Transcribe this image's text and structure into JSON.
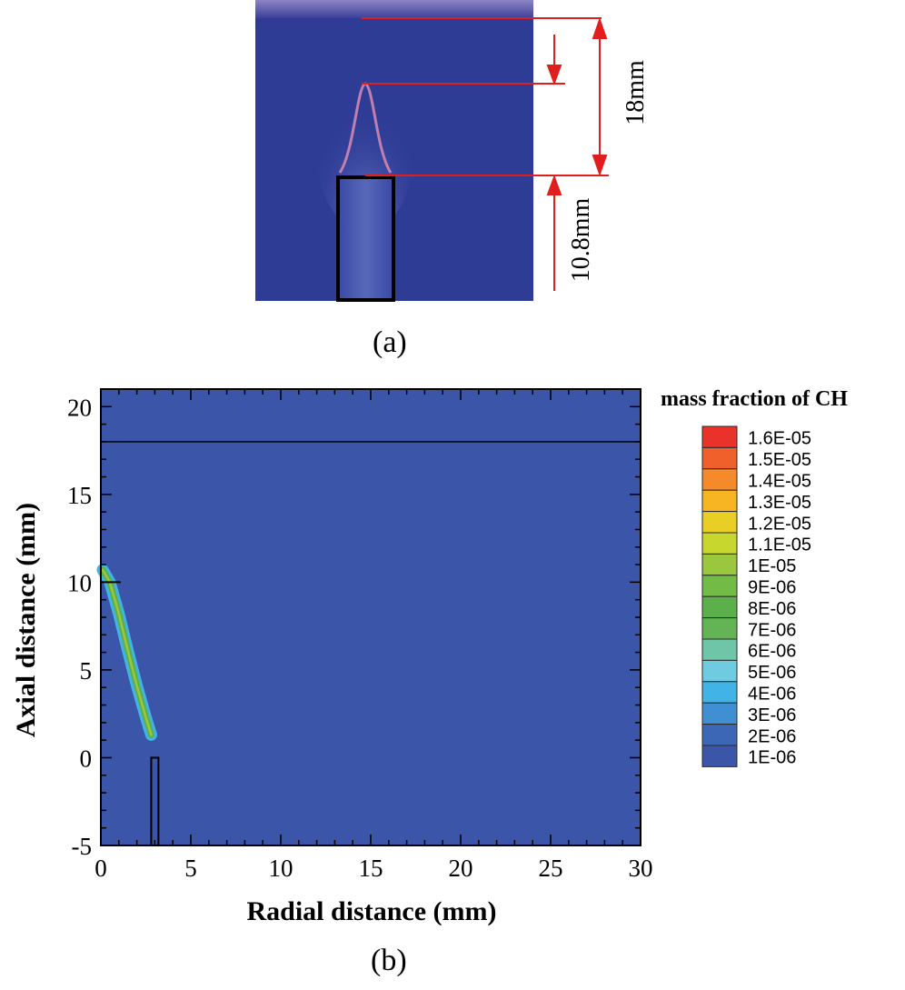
{
  "panel_a": {
    "caption": "(a)",
    "dimension_upper": "18mm",
    "dimension_lower": "10.8mm",
    "flame_color": "#2f3c96"
  },
  "panel_b": {
    "caption": "(b)",
    "background_color": "#3b55a8"
  },
  "chart_data": {
    "type": "contour",
    "title": "mass fraction of CH",
    "xlabel": "Radial distance (mm)",
    "ylabel": "Axial distance (mm)",
    "xlim": [
      0,
      30
    ],
    "ylim": [
      -5,
      21
    ],
    "xticks": [
      "0",
      "5",
      "10",
      "15",
      "20",
      "25",
      "30"
    ],
    "yticks": [
      "-5",
      "0",
      "5",
      "10",
      "15",
      "20"
    ],
    "reference_line_y": 18,
    "flame_front": {
      "x": [
        0.1,
        0.5,
        1.0,
        1.5,
        2.0,
        2.5,
        2.8
      ],
      "y": [
        10.7,
        10.0,
        8.2,
        6.1,
        4.1,
        2.3,
        1.3
      ]
    },
    "burner_tube": {
      "x": [
        2.8,
        3.2
      ],
      "y": [
        -5,
        0
      ]
    },
    "legend": {
      "levels": [
        "1.6E-05",
        "1.5E-05",
        "1.4E-05",
        "1.3E-05",
        "1.2E-05",
        "1.1E-05",
        "1E-05",
        "9E-06",
        "8E-06",
        "7E-06",
        "6E-06",
        "5E-06",
        "4E-06",
        "3E-06",
        "2E-06",
        "1E-06"
      ],
      "colors": [
        "#e8322a",
        "#f0602a",
        "#f58a2a",
        "#f8b523",
        "#e9cf25",
        "#c8d72d",
        "#9ac73d",
        "#72bb47",
        "#5bb04c",
        "#62b454",
        "#6fc5a8",
        "#6ecbe0",
        "#41b3e6",
        "#3f8fd2",
        "#3b67b6",
        "#3b55a8"
      ]
    }
  }
}
